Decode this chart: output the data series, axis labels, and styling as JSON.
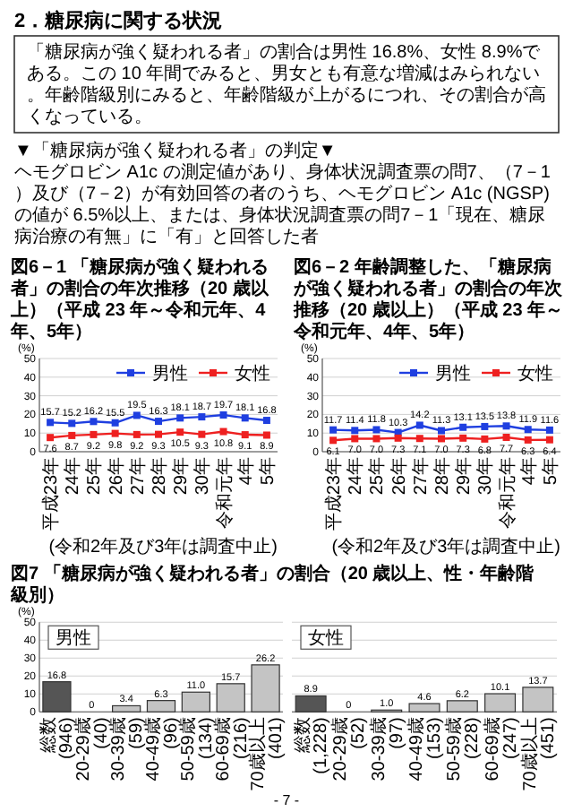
{
  "chart_data": [
    {
      "type": "other",
      "title": "2．糖尿病に関する状況",
      "annotations": [
        "「糖尿病が強く疑われる者」の割合は男性 16.8%、女性 8.9%である。この 10 年間でみると、男女とも有意な増減はみられない。年齢階級別にみると、年齢階級が上がるにつれ、その割合が高くなっている。",
        "▼「糖尿病が強く疑われる者」の判定▼",
        "ヘモグロビン A1c の測定値があり、身体状況調査票の問7、（7－1）及び（7－2）が有効回答の者のうち、ヘモグロビン A1c (NGSP)の値が 6.5%以上、または、身体状況調査票の問7－1「現在、糖尿病治療の有無」に「有」と回答した者",
        "- 7 -"
      ]
    },
    {
      "type": "line",
      "title": "図6－1 「糖尿病が強く疑われる者」の割合の年次推移（20 歳以上）（平成 23 年～令和元年、4年、5年）",
      "ylabel": "(%)",
      "categories": [
        "平成23年",
        "24年",
        "25年",
        "26年",
        "27年",
        "28年",
        "29年",
        "30年",
        "令和元年",
        "4年",
        "5年"
      ],
      "series": [
        {
          "name": "男性",
          "color": "#1f3fe0",
          "values": [
            15.7,
            15.2,
            16.2,
            15.5,
            19.5,
            16.3,
            18.1,
            18.7,
            19.7,
            18.1,
            16.8
          ]
        },
        {
          "name": "女性",
          "color": "#ee2020",
          "values": [
            7.6,
            8.7,
            9.2,
            9.8,
            9.2,
            9.3,
            10.5,
            9.3,
            10.8,
            9.1,
            8.9
          ]
        }
      ],
      "ylim": [
        0,
        50
      ],
      "yticks": [
        0,
        10,
        20,
        30,
        40,
        50
      ],
      "grid": "y",
      "legend": "top right",
      "marker": "square",
      "data_labels": true,
      "annotations": [
        "(令和2年及び3年は調査中止)"
      ]
    },
    {
      "type": "line",
      "title": "図6－2 年齢調整した、「糖尿病が強く疑われる者」の割合の年次推移（20 歳以上）（平成 23 年～令和元年、4年、5年）",
      "ylabel": "(%)",
      "categories": [
        "平成23年",
        "24年",
        "25年",
        "26年",
        "27年",
        "28年",
        "29年",
        "30年",
        "令和元年",
        "4年",
        "5年"
      ],
      "series": [
        {
          "name": "男性",
          "color": "#1f3fe0",
          "values": [
            11.7,
            11.4,
            11.8,
            10.3,
            14.2,
            11.3,
            13.1,
            13.5,
            13.8,
            11.9,
            11.6
          ]
        },
        {
          "name": "女性",
          "color": "#ee2020",
          "values": [
            6.1,
            7.0,
            7.0,
            7.3,
            7.1,
            7.0,
            7.3,
            6.8,
            7.7,
            6.3,
            6.4
          ],
          "value_labels": [
            "6.1",
            "7.0",
            "7.0",
            "7.3",
            "7.1",
            "7.0",
            "7.3",
            "6.8",
            "7.7",
            "6.3",
            "6.4"
          ]
        }
      ],
      "ylim": [
        0,
        50
      ],
      "yticks": [
        0,
        10,
        20,
        30,
        40,
        50
      ],
      "grid": "y",
      "legend": "top right",
      "marker": "square",
      "data_labels": true,
      "annotations": [
        "(令和2年及び3年は調査中止)"
      ]
    },
    {
      "type": "bar",
      "title": "図7 「糖尿病が強く疑われる者」の割合（20 歳以上、性・年齢階級別）",
      "subtitle": "男性",
      "ylabel": "(%)",
      "categories": [
        "総数\n(946)",
        "20-29歳\n(40)",
        "30-39歳\n(59)",
        "40-49歳\n(96)",
        "50-59歳\n(134)",
        "60-69歳\n(216)",
        "70歳以上\n(401)"
      ],
      "values": [
        16.8,
        0,
        3.4,
        6.3,
        11.0,
        15.7,
        26.2
      ],
      "value_labels": [
        "16.8",
        "0",
        "3.4",
        "6.3",
        "11.0",
        "15.7",
        "26.2"
      ],
      "colors": [
        "#555555",
        "#c4c4c4",
        "#c4c4c4",
        "#c4c4c4",
        "#c4c4c4",
        "#c4c4c4",
        "#c4c4c4"
      ],
      "ylim": [
        0,
        50
      ],
      "yticks": [
        0,
        10,
        20,
        30,
        40,
        50
      ],
      "grid": "y"
    },
    {
      "type": "bar",
      "subtitle": "女性",
      "categories": [
        "総数\n(1,228)",
        "20-29歳\n(52)",
        "30-39歳\n(97)",
        "40-49歳\n(153)",
        "50-59歳\n(228)",
        "60-69歳\n(247)",
        "70歳以上\n(451)"
      ],
      "values": [
        8.9,
        0,
        1.0,
        4.6,
        6.2,
        10.1,
        13.7
      ],
      "value_labels": [
        "8.9",
        "0",
        "1.0",
        "4.6",
        "6.2",
        "10.1",
        "13.7"
      ],
      "colors": [
        "#555555",
        "#c4c4c4",
        "#c4c4c4",
        "#c4c4c4",
        "#c4c4c4",
        "#c4c4c4",
        "#c4c4c4"
      ],
      "ylim": [
        0,
        50
      ],
      "yticks": [
        0,
        10,
        20,
        30,
        40,
        50
      ],
      "grid": "y",
      "tick_labels": "x"
    }
  ]
}
